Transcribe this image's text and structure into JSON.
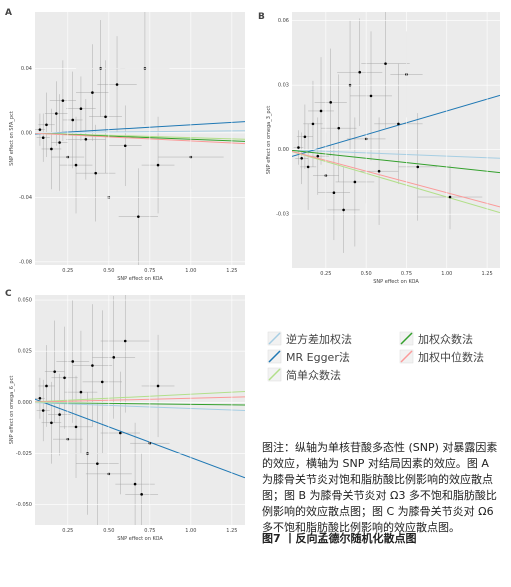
{
  "chart_data": [
    {
      "type": "scatter",
      "label": "A",
      "xlabel": "SNP effect on KOA",
      "ylabel": "SNP effect on SFA_pct",
      "xlim": [
        0.05,
        1.33
      ],
      "ylim": [
        -0.082,
        0.075
      ],
      "xticks": [
        0.25,
        {
          "value": 0.5,
          "label": "0.50"
        },
        0.75,
        {
          "value": 1,
          "label": "1.00"
        },
        1.25
      ],
      "yticks": [
        -0.08,
        -0.04,
        {
          "value": 0,
          "label": "0.00"
        },
        0.04
      ],
      "points": {
        "x": [
          0.08,
          0.1,
          0.12,
          0.15,
          0.18,
          0.2,
          0.22,
          0.25,
          0.28,
          0.3,
          0.33,
          0.36,
          0.4,
          0.42,
          0.45,
          0.48,
          0.5,
          0.55,
          0.6,
          0.68,
          0.72,
          0.8,
          1.0
        ],
        "y": [
          0.002,
          -0.003,
          0.005,
          -0.01,
          0.012,
          -0.006,
          0.02,
          -0.015,
          0.008,
          -0.02,
          0.015,
          -0.004,
          0.025,
          -0.025,
          0.04,
          0.01,
          -0.04,
          0.03,
          -0.008,
          -0.052,
          0.04,
          -0.02,
          -0.015
        ],
        "x_err": [
          0.03,
          0.04,
          0.05,
          0.06,
          0.07,
          0.05,
          0.08,
          0.1,
          0.06,
          0.1,
          0.09,
          0.12,
          0.1,
          0.12,
          0.15,
          0.1,
          0.13,
          0.12,
          0.1,
          0.12,
          0.15,
          0.1,
          0.2
        ],
        "y_err": [
          0.01,
          0.015,
          0.02,
          0.025,
          0.02,
          0.03,
          0.025,
          0.02,
          0.03,
          0.03,
          0.02,
          0.025,
          0.03,
          0.03,
          0.03,
          0.035,
          0.03,
          0.03,
          0.025,
          0.03,
          0.035,
          0.03,
          0.02
        ]
      },
      "fits": [
        {
          "intercept": 0,
          "slope": 0.001
        },
        {
          "intercept": -0.001,
          "slope": 0.006
        },
        {
          "intercept": 0,
          "slope": -0.003
        },
        {
          "intercept": 0,
          "slope": -0.004
        },
        {
          "intercept": 0,
          "slope": -0.005
        }
      ]
    },
    {
      "type": "scatter",
      "label": "B",
      "xlabel": "SNP effect on KOA",
      "ylabel": "SNP effect on omega_3_pct",
      "xlim": [
        0.04,
        1.33
      ],
      "ylim": [
        -0.055,
        0.064
      ],
      "xticks": [
        0.25,
        {
          "value": 0.5,
          "label": "0.50"
        },
        0.75,
        {
          "value": 1,
          "label": "1.00"
        },
        1.25
      ],
      "yticks": [
        -0.03,
        {
          "value": 0,
          "label": "0.00"
        },
        0.03,
        0.06
      ],
      "points": {
        "x": [
          0.08,
          0.1,
          0.12,
          0.14,
          0.17,
          0.2,
          0.22,
          0.25,
          0.28,
          0.3,
          0.33,
          0.36,
          0.4,
          0.43,
          0.46,
          0.5,
          0.53,
          0.58,
          0.62,
          0.7,
          0.75,
          0.82,
          1.02
        ],
        "y": [
          0.001,
          -0.004,
          0.006,
          -0.008,
          0.012,
          -0.003,
          0.018,
          -0.012,
          0.022,
          -0.02,
          0.01,
          -0.028,
          0.03,
          -0.015,
          0.036,
          0.005,
          0.025,
          -0.01,
          0.04,
          0.012,
          0.035,
          -0.008,
          -0.022
        ],
        "x_err": [
          0.03,
          0.04,
          0.05,
          0.05,
          0.06,
          0.07,
          0.08,
          0.08,
          0.1,
          0.1,
          0.11,
          0.1,
          0.12,
          0.12,
          0.14,
          0.12,
          0.13,
          0.12,
          0.15,
          0.15,
          0.1,
          0.12,
          0.2
        ],
        "y_err": [
          0.008,
          0.012,
          0.015,
          0.02,
          0.02,
          0.018,
          0.025,
          0.02,
          0.025,
          0.022,
          0.025,
          0.02,
          0.03,
          0.03,
          0.025,
          0.03,
          0.03,
          0.025,
          0.03,
          0.028,
          0.02,
          0.025,
          0.015
        ]
      },
      "fits": [
        {
          "intercept": 0,
          "slope": -0.003
        },
        {
          "intercept": -0.004,
          "slope": 0.022
        },
        {
          "intercept": 0,
          "slope": -0.022
        },
        {
          "intercept": 0,
          "slope": -0.008
        },
        {
          "intercept": 0,
          "slope": -0.02
        }
      ]
    },
    {
      "type": "scatter",
      "label": "C",
      "xlabel": "SNP effect on KOA",
      "ylabel": "SNP effect on omega_6_pct",
      "xlim": [
        0.05,
        1.33
      ],
      "ylim": [
        -0.06,
        0.0525
      ],
      "xticks": [
        0.25,
        {
          "value": 0.5,
          "label": "0.50"
        },
        0.75,
        {
          "value": 1,
          "label": "1.00"
        },
        1.25
      ],
      "yticks": [
        {
          "value": -0.05,
          "label": "-0.050"
        },
        -0.025,
        {
          "value": 0,
          "label": "0.000"
        },
        0.025,
        {
          "value": 0.05,
          "label": "0.050"
        }
      ],
      "points": {
        "x": [
          0.08,
          0.1,
          0.12,
          0.15,
          0.17,
          0.2,
          0.23,
          0.25,
          0.28,
          0.3,
          0.33,
          0.37,
          0.4,
          0.43,
          0.46,
          0.5,
          0.53,
          0.57,
          0.6,
          0.66,
          0.7,
          0.75,
          0.8
        ],
        "y": [
          0.002,
          -0.004,
          0.008,
          -0.01,
          0.015,
          -0.006,
          0.012,
          -0.018,
          0.02,
          -0.012,
          0.005,
          -0.025,
          0.018,
          -0.03,
          0.01,
          -0.035,
          0.022,
          -0.015,
          0.03,
          -0.04,
          -0.045,
          -0.02,
          0.008
        ],
        "x_err": [
          0.03,
          0.04,
          0.05,
          0.06,
          0.06,
          0.07,
          0.08,
          0.09,
          0.1,
          0.1,
          0.1,
          0.12,
          0.12,
          0.13,
          0.12,
          0.14,
          0.13,
          0.12,
          0.15,
          0.12,
          0.1,
          0.12,
          0.1
        ],
        "y_err": [
          0.01,
          0.015,
          0.02,
          0.02,
          0.025,
          0.02,
          0.025,
          0.025,
          0.03,
          0.025,
          0.03,
          0.03,
          0.03,
          0.03,
          0.035,
          0.03,
          0.03,
          0.03,
          0.035,
          0.03,
          0.02,
          0.03,
          0.025
        ]
      },
      "fits": [
        {
          "intercept": 0,
          "slope": -0.003
        },
        {
          "intercept": 0.003,
          "slope": -0.03
        },
        {
          "intercept": 0,
          "slope": 0.004
        },
        {
          "intercept": 0,
          "slope": -0.001
        },
        {
          "intercept": 0,
          "slope": 0.002
        }
      ]
    }
  ],
  "legend": [
    {
      "name": "逆方差加权法",
      "color": "#a6cee3"
    },
    {
      "name": "MR Egger法",
      "color": "#1f78b4"
    },
    {
      "name": "简单众数法",
      "color": "#b2df8a"
    },
    {
      "name": "加权众数法",
      "color": "#33a02c"
    },
    {
      "name": "加权中位数法",
      "color": "#fb9a99"
    }
  ],
  "caption": {
    "text": "图注：纵轴为单核苷酸多态性 (SNP) 对暴露因素的效应，横轴为 SNP 对结局因素的效应。图 A 为膝骨关节炎对饱和脂肪酸比例影响的效应散点图；图 B 为膝骨关节炎对 Ω3 多不饱和脂肪酸比例影响的效应散点图；图 C 为膝骨关节炎对 Ω6 多不饱和脂肪酸比例影响的效应散点图。",
    "title": "图7 丨反向孟德尔随机化散点图"
  }
}
